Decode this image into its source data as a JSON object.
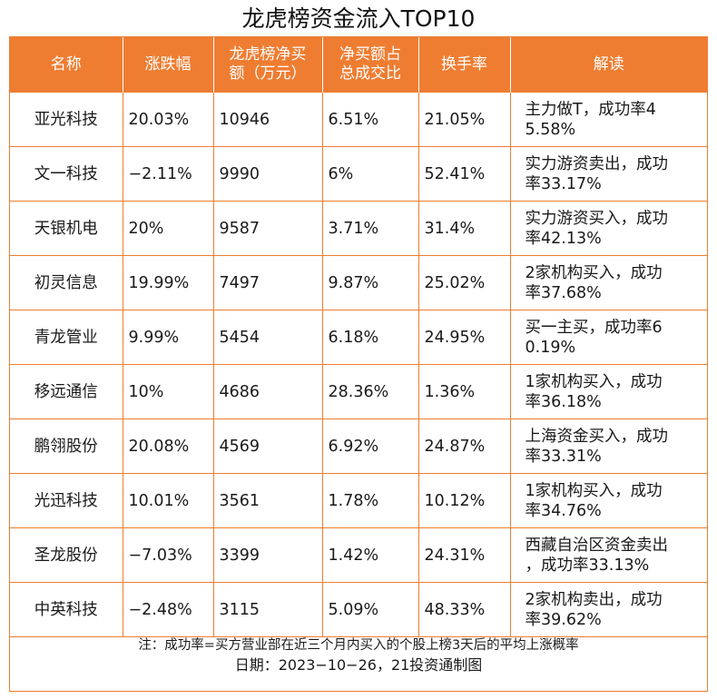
{
  "title": "龙虎榜资金流入TOP10",
  "headers": {
    "name": "名称",
    "change": "涨跌幅",
    "net_buy_line1": "龙虎榜净买",
    "net_buy_line2": "额（万元）",
    "ratio_line1": "净买额占",
    "ratio_line2": "总成交比",
    "turnover": "换手率",
    "interpretation": "解读"
  },
  "rows": [
    {
      "name": "亚光科技",
      "change": "20.03%",
      "net_buy": "10946",
      "ratio": "6.51%",
      "turnover": "21.05%",
      "interp_line1": "主力做T，成功率4",
      "interp_line2": "5.58%"
    },
    {
      "name": "文一科技",
      "change": "−2.11%",
      "net_buy": "9990",
      "ratio": "6%",
      "turnover": "52.41%",
      "interp_line1": "实力游资卖出，成功",
      "interp_line2": "率33.17%"
    },
    {
      "name": "天银机电",
      "change": "20%",
      "net_buy": "9587",
      "ratio": "3.71%",
      "turnover": "31.4%",
      "interp_line1": "实力游资买入，成功",
      "interp_line2": "率42.13%"
    },
    {
      "name": "初灵信息",
      "change": "19.99%",
      "net_buy": "7497",
      "ratio": "9.87%",
      "turnover": "25.02%",
      "interp_line1": "2家机构买入，成功",
      "interp_line2": "率37.68%"
    },
    {
      "name": "青龙管业",
      "change": "9.99%",
      "net_buy": "5454",
      "ratio": "6.18%",
      "turnover": "24.95%",
      "interp_line1": "买一主买，成功率6",
      "interp_line2": "0.19%"
    },
    {
      "name": "移远通信",
      "change": "10%",
      "net_buy": "4686",
      "ratio": "28.36%",
      "turnover": "1.36%",
      "interp_line1": "1家机构买入，成功",
      "interp_line2": "率36.18%"
    },
    {
      "name": "鹏翎股份",
      "change": "20.08%",
      "net_buy": "4569",
      "ratio": "6.92%",
      "turnover": "24.87%",
      "interp_line1": "上海资金买入，成功",
      "interp_line2": "率33.31%"
    },
    {
      "name": "光迅科技",
      "change": "10.01%",
      "net_buy": "3561",
      "ratio": "1.78%",
      "turnover": "10.12%",
      "interp_line1": "1家机构买入，成功",
      "interp_line2": "率34.76%"
    },
    {
      "name": "圣龙股份",
      "change": "−7.03%",
      "net_buy": "3399",
      "ratio": "1.42%",
      "turnover": "24.31%",
      "interp_line1": "西藏自治区资金卖出",
      "interp_line2": "，成功率33.13%"
    },
    {
      "name": "中英科技",
      "change": "−2.48%",
      "net_buy": "3115",
      "ratio": "5.09%",
      "turnover": "48.33%",
      "interp_line1": "2家机构卖出，成功",
      "interp_line2": "率39.62%"
    }
  ],
  "footer": {
    "note": "注：成功率=买方营业部在近三个月内买入的个股上榜3天后的平均上涨概率",
    "date": "日期：2023−10−26，21投资通制图"
  },
  "colors": {
    "accent": "#ef7d31",
    "header_text": "#ffffff"
  }
}
